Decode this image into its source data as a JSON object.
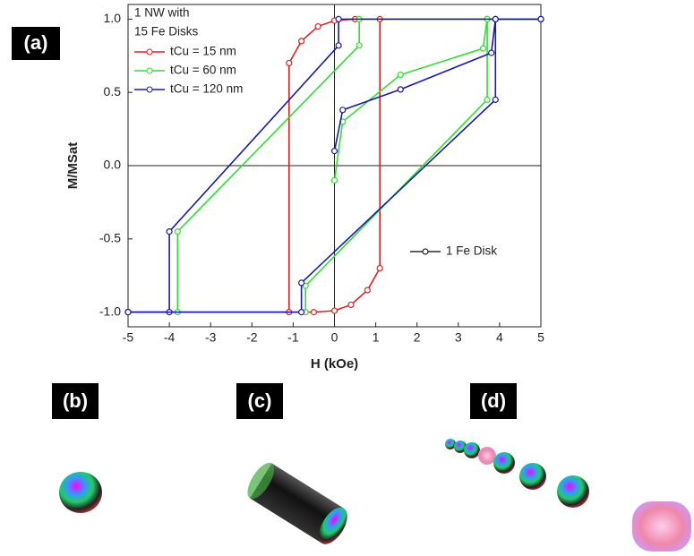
{
  "panels": [
    "(a)",
    "(b)",
    "(c)",
    "(d)"
  ],
  "chart_data": {
    "type": "line",
    "xlabel": "H (kOe)",
    "ylabel": "M/MSat",
    "legend_title": [
      "1 NW with",
      "15 Fe Disks"
    ],
    "annotation": "1 Fe Disk",
    "xlim": [
      -5,
      5
    ],
    "xticks": [
      -5,
      -4,
      -3,
      -2,
      -1,
      0,
      1,
      2,
      3,
      4,
      5
    ],
    "ylim": [
      -1.1,
      1.1
    ],
    "yticks": [
      {
        "value": -1,
        "label": "-1.0"
      },
      {
        "value": -0.5,
        "label": "-0.5"
      },
      {
        "value": 0,
        "label": "0.0"
      },
      {
        "value": 0.5,
        "label": "0.5"
      },
      {
        "value": 1,
        "label": "1.0"
      }
    ],
    "zero_lines": true,
    "series": [
      {
        "name": "tCu = 15 nm",
        "color": "#e02020",
        "x": [
          5,
          0.5,
          0,
          -0.4,
          -0.8,
          -1.1,
          -1.1,
          -5,
          null,
          -5,
          -0.5,
          0,
          0.4,
          0.8,
          1.1,
          1.1,
          5
        ],
        "values": [
          1,
          1,
          0.99,
          0.95,
          0.85,
          0.7,
          -1,
          -1,
          null,
          -1,
          -1,
          -0.99,
          -0.95,
          -0.85,
          -0.7,
          1,
          1
        ]
      },
      {
        "name": "tCu = 60 nm",
        "color": "#30dd30",
        "x": [
          5,
          0.6,
          0.6,
          -3.8,
          -3.8,
          -5,
          null,
          -5,
          -0.7,
          -0.7,
          3.7,
          3.7,
          5,
          null,
          0,
          0.2,
          1.6,
          3.6,
          3.7
        ],
        "values": [
          1,
          1,
          0.82,
          -0.45,
          -1,
          -1,
          null,
          -1,
          -1,
          -0.82,
          0.45,
          1,
          1,
          null,
          -0.1,
          0.3,
          0.62,
          0.8,
          1
        ]
      },
      {
        "name": "tCu = 120 nm",
        "color": "#1a1aa8",
        "x": [
          5,
          0.1,
          0.1,
          -4,
          -4,
          -5,
          null,
          -5,
          -0.8,
          -0.8,
          3.9,
          3.9,
          5,
          null,
          0,
          0.2,
          1.6,
          3.8,
          3.9
        ],
        "values": [
          1,
          1,
          0.82,
          -0.45,
          -1,
          -1,
          null,
          -1,
          -1,
          -0.8,
          0.45,
          1,
          1,
          null,
          0.1,
          0.38,
          0.52,
          0.77,
          1
        ]
      }
    ]
  }
}
